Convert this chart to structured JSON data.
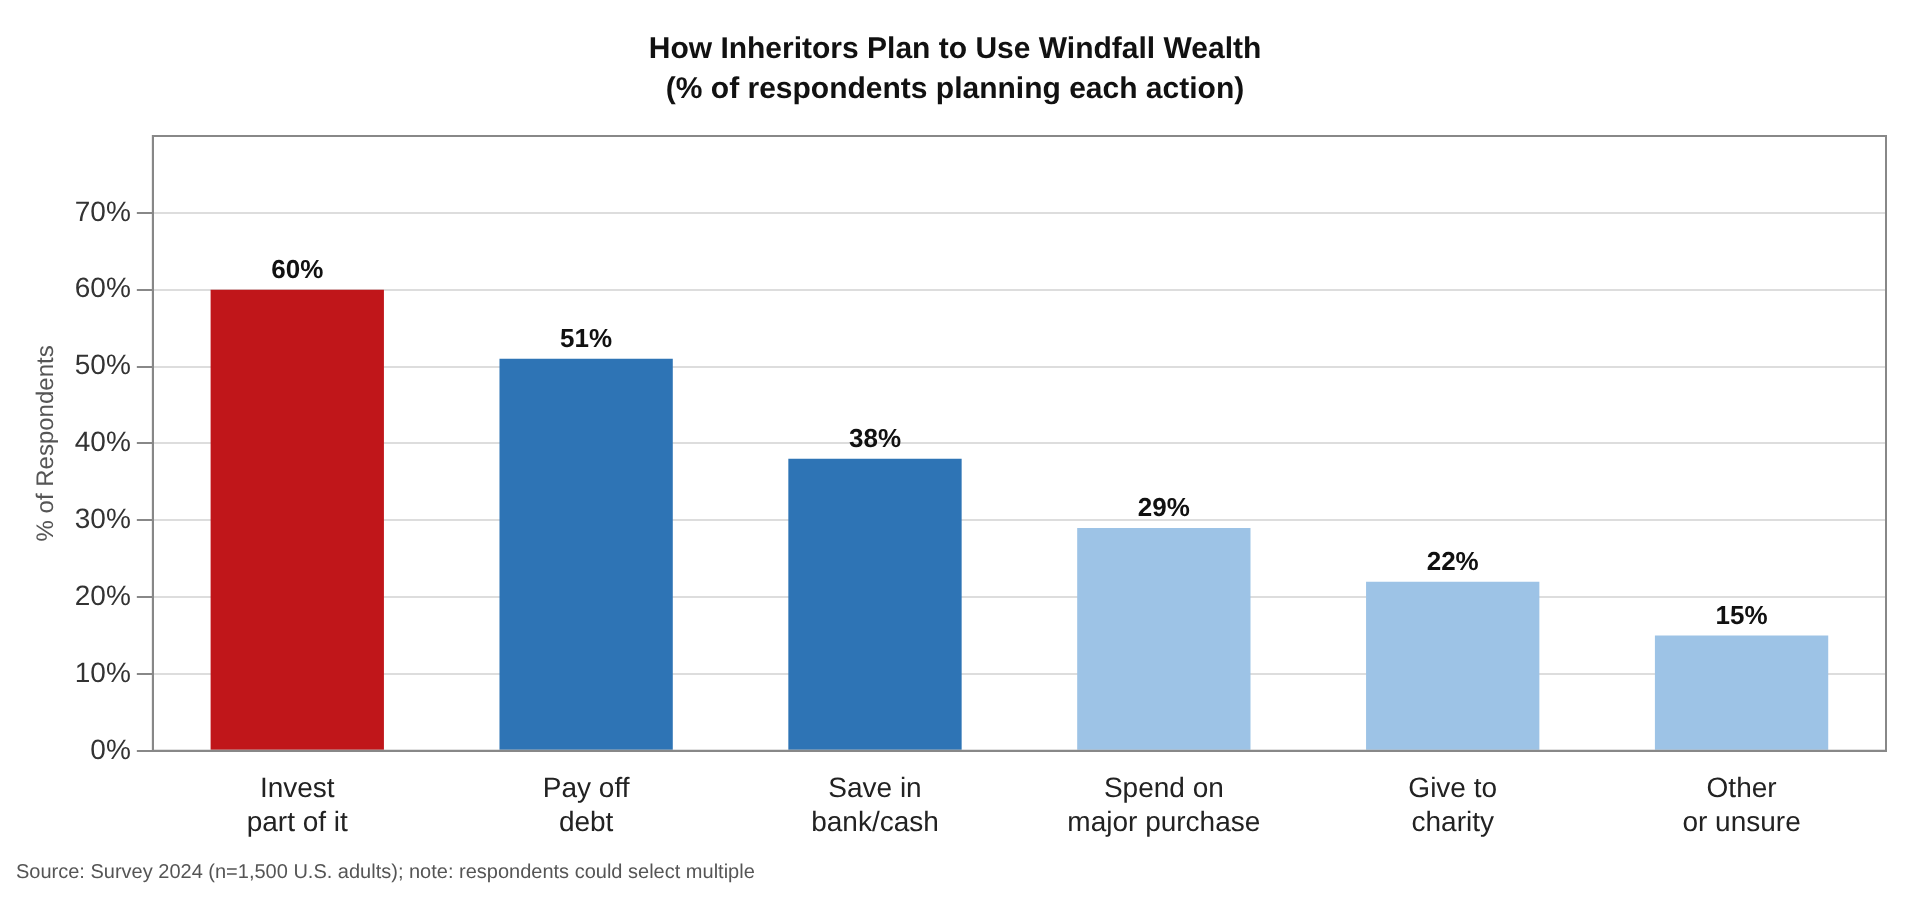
{
  "chart_data": {
    "type": "bar",
    "title": "How Inheritors Plan to Use Windfall Wealth",
    "subtitle": "(% of respondents planning each action)",
    "ylabel": "% of Respondents",
    "categories": [
      "Invest\npart of it",
      "Pay off\ndebt",
      "Save in\nbank/cash",
      "Spend on\nmajor purchase",
      "Give to\ncharity",
      "Other\nor unsure"
    ],
    "values": [
      60,
      51,
      38,
      29,
      22,
      15
    ],
    "colors": [
      "#c0161a",
      "#2e74b5",
      "#2e74b5",
      "#9dc3e6",
      "#9dc3e6",
      "#9dc3e6"
    ],
    "value_labels": [
      "60%",
      "51%",
      "38%",
      "29%",
      "22%",
      "15%"
    ],
    "ylim": [
      0,
      80
    ],
    "yticks": [
      {
        "value": 0,
        "label": "0%"
      },
      {
        "value": 10,
        "label": "10%"
      },
      {
        "value": 20,
        "label": "20%"
      },
      {
        "value": 30,
        "label": "30%"
      },
      {
        "value": 40,
        "label": "40%"
      },
      {
        "value": 50,
        "label": "50%"
      },
      {
        "value": 60,
        "label": "60%"
      },
      {
        "value": 70,
        "label": "70%"
      }
    ],
    "grid": "y",
    "legend": false,
    "annotations": [
      "Source: Survey 2024 (n=1,500 U.S. adults); note: respondents could select multiple"
    ]
  }
}
